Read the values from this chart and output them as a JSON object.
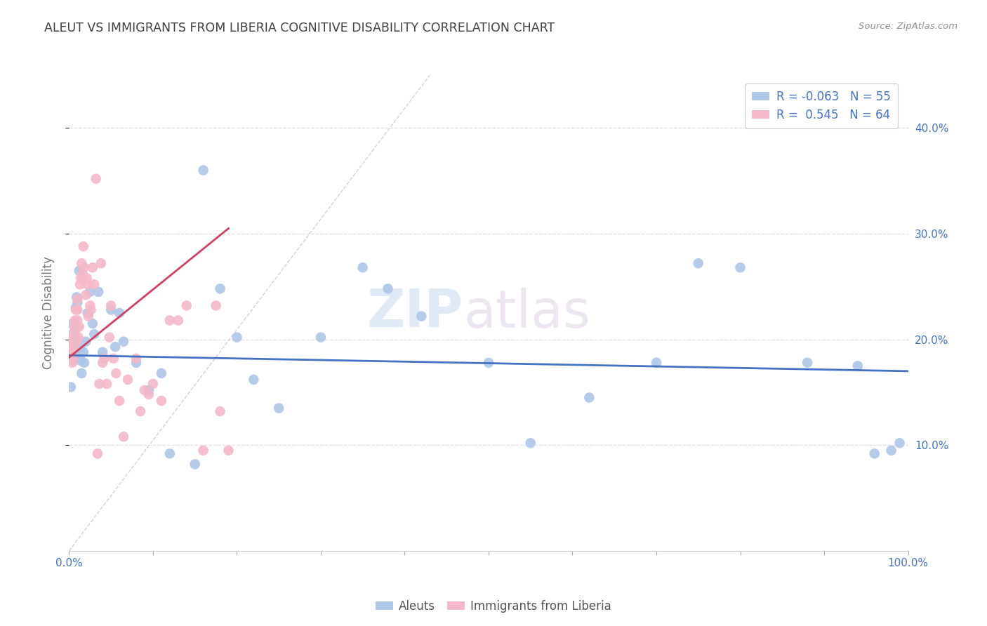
{
  "title": "ALEUT VS IMMIGRANTS FROM LIBERIA COGNITIVE DISABILITY CORRELATION CHART",
  "source": "Source: ZipAtlas.com",
  "ylabel": "Cognitive Disability",
  "right_yticks": [
    "10.0%",
    "20.0%",
    "30.0%",
    "40.0%"
  ],
  "right_ytick_vals": [
    0.1,
    0.2,
    0.3,
    0.4
  ],
  "watermark_zip": "ZIP",
  "watermark_atlas": "atlas",
  "aleuts_x": [
    0.002,
    0.003,
    0.004,
    0.004,
    0.005,
    0.005,
    0.006,
    0.006,
    0.007,
    0.007,
    0.008,
    0.009,
    0.01,
    0.012,
    0.013,
    0.014,
    0.015,
    0.017,
    0.018,
    0.02,
    0.022,
    0.025,
    0.028,
    0.03,
    0.035,
    0.04,
    0.05,
    0.055,
    0.06,
    0.065,
    0.08,
    0.095,
    0.11,
    0.12,
    0.15,
    0.16,
    0.18,
    0.2,
    0.22,
    0.25,
    0.3,
    0.35,
    0.38,
    0.42,
    0.5,
    0.55,
    0.62,
    0.7,
    0.75,
    0.8,
    0.88,
    0.94,
    0.96,
    0.98,
    0.99
  ],
  "aleuts_y": [
    0.155,
    0.19,
    0.205,
    0.215,
    0.19,
    0.18,
    0.195,
    0.205,
    0.185,
    0.215,
    0.23,
    0.24,
    0.235,
    0.265,
    0.192,
    0.18,
    0.168,
    0.188,
    0.178,
    0.198,
    0.225,
    0.245,
    0.215,
    0.205,
    0.245,
    0.188,
    0.228,
    0.193,
    0.225,
    0.198,
    0.178,
    0.152,
    0.168,
    0.092,
    0.082,
    0.36,
    0.248,
    0.202,
    0.162,
    0.135,
    0.202,
    0.268,
    0.248,
    0.222,
    0.178,
    0.102,
    0.145,
    0.178,
    0.272,
    0.268,
    0.178,
    0.175,
    0.092,
    0.095,
    0.102
  ],
  "liberia_x": [
    0.001,
    0.002,
    0.002,
    0.003,
    0.003,
    0.004,
    0.004,
    0.005,
    0.005,
    0.005,
    0.006,
    0.006,
    0.007,
    0.007,
    0.008,
    0.008,
    0.009,
    0.009,
    0.01,
    0.01,
    0.01,
    0.011,
    0.012,
    0.013,
    0.014,
    0.015,
    0.016,
    0.017,
    0.018,
    0.02,
    0.021,
    0.022,
    0.023,
    0.025,
    0.026,
    0.028,
    0.03,
    0.032,
    0.034,
    0.036,
    0.038,
    0.04,
    0.042,
    0.045,
    0.048,
    0.05,
    0.053,
    0.056,
    0.06,
    0.065,
    0.07,
    0.08,
    0.085,
    0.09,
    0.095,
    0.1,
    0.11,
    0.12,
    0.13,
    0.14,
    0.16,
    0.175,
    0.18,
    0.19
  ],
  "liberia_y": [
    0.188,
    0.192,
    0.202,
    0.198,
    0.188,
    0.178,
    0.202,
    0.182,
    0.192,
    0.202,
    0.212,
    0.198,
    0.208,
    0.218,
    0.202,
    0.228,
    0.198,
    0.212,
    0.218,
    0.228,
    0.238,
    0.202,
    0.212,
    0.252,
    0.258,
    0.272,
    0.262,
    0.288,
    0.268,
    0.242,
    0.258,
    0.252,
    0.222,
    0.232,
    0.228,
    0.268,
    0.252,
    0.352,
    0.092,
    0.158,
    0.272,
    0.178,
    0.182,
    0.158,
    0.202,
    0.232,
    0.182,
    0.168,
    0.142,
    0.108,
    0.162,
    0.182,
    0.132,
    0.152,
    0.148,
    0.158,
    0.142,
    0.218,
    0.218,
    0.232,
    0.095,
    0.232,
    0.132,
    0.095
  ],
  "aleut_color": "#aec6e8",
  "liberia_color": "#f4b8c8",
  "aleut_line_color": "#4472c4",
  "liberia_line_color": "#d04060",
  "diagonal_color": "#c8c8c8",
  "bg_color": "#ffffff",
  "grid_color": "#e0e0e0",
  "title_color": "#404040",
  "source_color": "#909090",
  "right_tick_color": "#4472c4",
  "xlim": [
    0.0,
    1.0
  ],
  "ylim": [
    0.0,
    0.45
  ],
  "aleut_R": -0.063,
  "liberia_R": 0.545,
  "legend_label_aleut": "R = -0.063   N = 55",
  "legend_label_liberia": "R =  0.545   N = 64",
  "bottom_legend_aleut": "Aleuts",
  "bottom_legend_liberia": "Immigrants from Liberia"
}
